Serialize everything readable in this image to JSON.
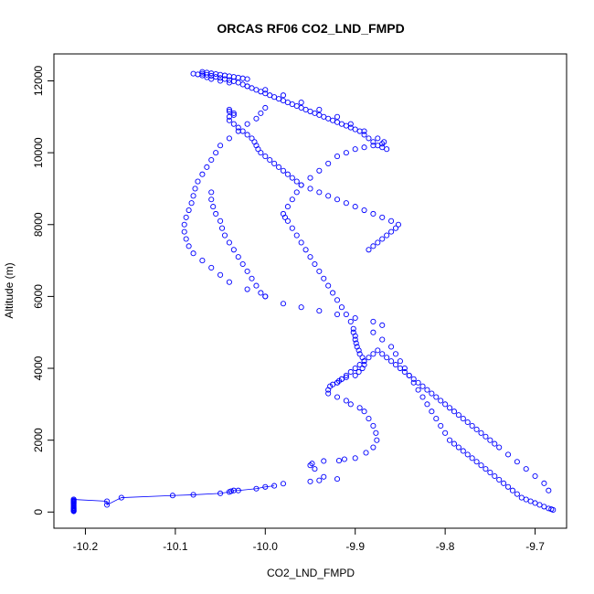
{
  "chart_data": {
    "type": "scatter",
    "title": "ORCAS RF06 CO2_LND_FMPD",
    "xlabel": "CO2_LND_FMPD",
    "ylabel": "Altitude (m)",
    "xlim": [
      -10.235,
      -9.665
    ],
    "ylim": [
      -450,
      12750
    ],
    "xticks": [
      -10.2,
      -10.1,
      -10.0,
      -9.9,
      -9.8,
      -9.7
    ],
    "xtick_labels": [
      "-10.2",
      "-10.1",
      "-10.0",
      "-9.9",
      "-9.8",
      "-9.7"
    ],
    "yticks": [
      0,
      2000,
      4000,
      6000,
      8000,
      10000,
      12000
    ],
    "ytick_labels": [
      "0",
      "2000",
      "4000",
      "6000",
      "8000",
      "10000",
      "12000"
    ],
    "grid": false,
    "marker": "open-circle",
    "color": "#0000ff",
    "series": [
      {
        "x": [
          -10.213,
          -10.213,
          -10.213,
          -10.213,
          -10.213,
          -10.213,
          -10.213,
          -10.213,
          -10.213,
          -10.213,
          -10.213,
          -10.213,
          -10.213,
          -10.213,
          -10.213,
          -10.213
        ],
        "y": [
          350,
          320,
          300,
          280,
          260,
          240,
          210,
          180,
          150,
          120,
          100,
          80,
          60,
          40,
          30,
          20
        ]
      },
      {
        "x": [
          -10.213,
          -10.176,
          -10.176,
          -10.16,
          -10.103,
          -10.08,
          -10.05,
          -10.04,
          -10.038,
          -10.035,
          -10.03,
          -10.01,
          -10.0,
          -9.99,
          -9.98,
          -9.95,
          -9.94,
          -9.92,
          -9.935,
          -9.945,
          -9.95,
          -9.948,
          -9.935,
          -9.918,
          -9.912,
          -9.9,
          -9.888,
          -9.88,
          -9.876,
          -9.877,
          -9.88,
          -9.885,
          -9.89,
          -9.895,
          -9.905,
          -9.91,
          -9.92,
          -9.93,
          -9.93,
          -9.928,
          -9.925,
          -9.92,
          -9.918,
          -9.915,
          -9.91,
          -9.9,
          -9.896,
          -9.892,
          -9.89,
          -9.89,
          -9.892,
          -9.895,
          -9.896,
          -9.898,
          -9.899,
          -9.9,
          -9.9,
          -9.902
        ],
        "y": [
          350,
          300,
          200,
          400,
          460,
          480,
          520,
          560,
          580,
          600,
          600,
          650,
          700,
          730,
          790,
          850,
          880,
          920,
          980,
          1200,
          1300,
          1350,
          1420,
          1430,
          1470,
          1500,
          1650,
          1800,
          2000,
          2200,
          2400,
          2600,
          2800,
          2900,
          3000,
          3100,
          3200,
          3300,
          3400,
          3500,
          3550,
          3600,
          3650,
          3700,
          3750,
          3800,
          3900,
          4000,
          4100,
          4200,
          4300,
          4400,
          4500,
          4600,
          4700,
          4800,
          4900,
          5000
        ]
      },
      {
        "x": [
          -9.902,
          -9.905,
          -9.91,
          -9.915,
          -9.92,
          -9.925,
          -9.93,
          -9.935,
          -9.94,
          -9.945,
          -9.95,
          -9.955,
          -9.96,
          -9.965,
          -9.97,
          -9.975,
          -9.978,
          -9.98,
          -9.975,
          -9.97,
          -9.965,
          -9.96,
          -9.95,
          -9.94,
          -9.93,
          -9.92,
          -9.91,
          -9.9,
          -9.89,
          -9.88,
          -9.87,
          -9.868,
          -9.875,
          -9.89,
          -9.905,
          -9.92,
          -9.94,
          -9.96,
          -9.98,
          -10.0,
          -10.02,
          -10.04,
          -10.05,
          -10.06,
          -10.065,
          -10.07,
          -10.075,
          -10.08
        ],
        "y": [
          5100,
          5300,
          5500,
          5700,
          5900,
          6100,
          6300,
          6500,
          6700,
          6900,
          7100,
          7300,
          7500,
          7700,
          7900,
          8100,
          8200,
          8300,
          8500,
          8700,
          8900,
          9100,
          9300,
          9500,
          9700,
          9900,
          10000,
          10100,
          10150,
          10200,
          10250,
          10300,
          10400,
          10600,
          10800,
          11000,
          11200,
          11400,
          11600,
          11750,
          11850,
          11950,
          12000,
          12050,
          12100,
          12150,
          12180,
          12200
        ]
      },
      {
        "x": [
          -10.07,
          -10.065,
          -10.06,
          -10.055,
          -10.05,
          -10.045,
          -10.04,
          -10.035,
          -10.03,
          -10.025,
          -10.02,
          -10.015,
          -10.01,
          -10.005,
          -10.0,
          -9.995,
          -9.99,
          -9.985,
          -9.98,
          -9.975,
          -9.97,
          -9.965,
          -9.96,
          -9.955,
          -9.95,
          -9.945,
          -9.94,
          -9.935,
          -9.93,
          -9.925,
          -9.92,
          -9.915,
          -9.91,
          -9.905,
          -9.9,
          -9.895,
          -9.89,
          -9.885,
          -9.88,
          -9.875,
          -9.87,
          -9.865
        ],
        "y": [
          12200,
          12170,
          12140,
          12110,
          12080,
          12050,
          12020,
          11990,
          11950,
          11900,
          11850,
          11800,
          11750,
          11700,
          11650,
          11600,
          11550,
          11500,
          11450,
          11400,
          11350,
          11300,
          11250,
          11200,
          11150,
          11100,
          11050,
          11000,
          10950,
          10900,
          10850,
          10800,
          10750,
          10700,
          10650,
          10600,
          10500,
          10400,
          10300,
          10200,
          10150,
          10100
        ]
      },
      {
        "x": [
          -10.04,
          -10.04,
          -10.035,
          -10.035,
          -10.04,
          -10.04,
          -10.035,
          -10.03,
          -10.025,
          -10.02,
          -10.015,
          -10.012,
          -10.01,
          -10.008,
          -10.005,
          -10.0,
          -9.995,
          -9.99,
          -9.985,
          -9.98,
          -9.975,
          -9.97,
          -9.965,
          -9.96,
          -9.95,
          -9.94,
          -9.93,
          -9.92,
          -9.91,
          -9.9,
          -9.89,
          -9.88,
          -9.87,
          -9.86,
          -9.852,
          -9.855,
          -9.86,
          -9.865,
          -9.87,
          -9.875,
          -9.88,
          -9.885
        ],
        "y": [
          11200,
          11150,
          11100,
          11050,
          11000,
          10900,
          10800,
          10700,
          10600,
          10500,
          10400,
          10300,
          10200,
          10100,
          10000,
          9900,
          9800,
          9700,
          9600,
          9500,
          9400,
          9300,
          9200,
          9100,
          9000,
          8900,
          8800,
          8700,
          8600,
          8500,
          8400,
          8300,
          8200,
          8100,
          8000,
          7900,
          7800,
          7700,
          7600,
          7500,
          7400,
          7300
        ]
      },
      {
        "x": [
          -10.0,
          -10.005,
          -10.01,
          -10.02,
          -10.03,
          -10.04,
          -10.05,
          -10.055,
          -10.06,
          -10.065,
          -10.07,
          -10.075,
          -10.078,
          -10.08,
          -10.082,
          -10.085,
          -10.088,
          -10.09,
          -10.09,
          -10.088,
          -10.085,
          -10.08,
          -10.07,
          -10.06,
          -10.05,
          -10.04,
          -10.02,
          -10.0,
          -9.98,
          -9.96,
          -9.94,
          -9.92,
          -9.9,
          -9.88,
          -9.87
        ],
        "y": [
          11250,
          11100,
          10950,
          10800,
          10600,
          10400,
          10200,
          10000,
          9800,
          9600,
          9400,
          9200,
          9000,
          8800,
          8600,
          8400,
          8200,
          8000,
          7800,
          7600,
          7400,
          7200,
          7000,
          6800,
          6600,
          6400,
          6200,
          6000,
          5800,
          5700,
          5600,
          5500,
          5400,
          5300,
          5200
        ]
      },
      {
        "x": [
          -10.06,
          -10.06,
          -10.058,
          -10.055,
          -10.05,
          -10.048,
          -10.045,
          -10.04,
          -10.035,
          -10.03,
          -10.025,
          -10.02,
          -10.015,
          -10.01,
          -10.005,
          -10.0
        ],
        "y": [
          8900,
          8700,
          8500,
          8300,
          8100,
          7900,
          7700,
          7500,
          7300,
          7100,
          6900,
          6700,
          6500,
          6300,
          6100,
          6000
        ]
      },
      {
        "x": [
          -9.88,
          -9.87,
          -9.86,
          -9.855,
          -9.85,
          -9.845,
          -9.84,
          -9.835,
          -9.83,
          -9.825,
          -9.82,
          -9.815,
          -9.81,
          -9.805,
          -9.8,
          -9.795,
          -9.79,
          -9.785,
          -9.78,
          -9.775,
          -9.77,
          -9.765,
          -9.76,
          -9.755,
          -9.75,
          -9.745,
          -9.74,
          -9.735,
          -9.73,
          -9.725,
          -9.72,
          -9.715,
          -9.71,
          -9.705,
          -9.7,
          -9.695,
          -9.69,
          -9.685,
          -9.682,
          -9.68
        ],
        "y": [
          5000,
          4800,
          4600,
          4400,
          4200,
          4000,
          3800,
          3600,
          3400,
          3200,
          3000,
          2800,
          2600,
          2400,
          2200,
          2000,
          1900,
          1800,
          1700,
          1600,
          1500,
          1400,
          1300,
          1200,
          1100,
          1000,
          900,
          800,
          700,
          600,
          500,
          400,
          350,
          300,
          250,
          200,
          150,
          100,
          80,
          60
        ]
      },
      {
        "x": [
          -9.92,
          -9.915,
          -9.91,
          -9.905,
          -9.9,
          -9.895,
          -9.89,
          -9.885,
          -9.88,
          -9.875,
          -9.87,
          -9.865,
          -9.86,
          -9.855,
          -9.85,
          -9.845,
          -9.84,
          -9.835,
          -9.83,
          -9.825,
          -9.82,
          -9.815,
          -9.81,
          -9.805,
          -9.8,
          -9.795,
          -9.79,
          -9.785,
          -9.78,
          -9.775,
          -9.77,
          -9.765,
          -9.76,
          -9.755,
          -9.75,
          -9.745,
          -9.74,
          -9.73,
          -9.72,
          -9.71,
          -9.7,
          -9.69,
          -9.685
        ],
        "y": [
          3600,
          3700,
          3800,
          3900,
          4000,
          4100,
          4200,
          4300,
          4400,
          4500,
          4400,
          4300,
          4200,
          4100,
          4000,
          3900,
          3800,
          3700,
          3600,
          3500,
          3400,
          3300,
          3200,
          3100,
          3000,
          2900,
          2800,
          2700,
          2600,
          2500,
          2400,
          2300,
          2200,
          2100,
          2000,
          1900,
          1800,
          1600,
          1400,
          1200,
          1000,
          800,
          600
        ]
      },
      {
        "x": [
          -10.07,
          -10.065,
          -10.06,
          -10.055,
          -10.05,
          -10.045,
          -10.04,
          -10.035,
          -10.03,
          -10.025,
          -10.02
        ],
        "y": [
          12250,
          12230,
          12210,
          12190,
          12170,
          12150,
          12130,
          12110,
          12090,
          12070,
          12050
        ]
      }
    ]
  }
}
